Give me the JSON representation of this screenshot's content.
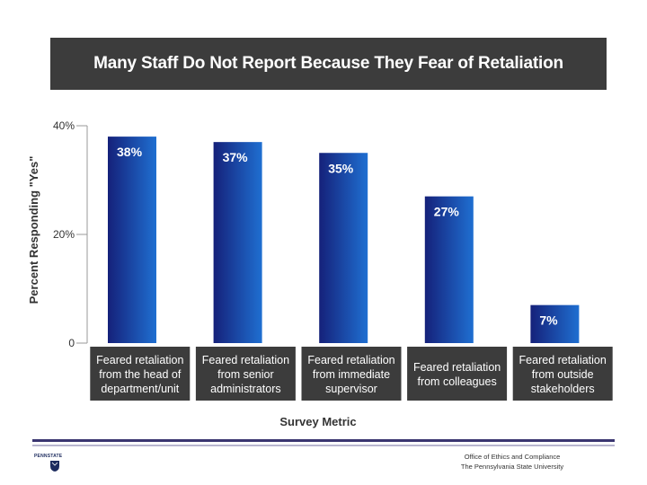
{
  "chart_data": {
    "type": "bar",
    "title": "Many Staff Do Not Report Because They Fear of Retaliation",
    "xlabel": "Survey Metric",
    "ylabel": "Percent Responding \"Yes\"",
    "ylim": [
      0,
      40
    ],
    "yticks": [
      "0",
      "20%",
      "40%"
    ],
    "categories": [
      [
        "Feared retaliation",
        "from the head of",
        "department/unit"
      ],
      [
        "Feared retaliation",
        "from senior",
        "administrators"
      ],
      [
        "Feared retaliation",
        "from immediate",
        "supervisor"
      ],
      [
        "Feared retaliation",
        "from colleagues"
      ],
      [
        "Feared retaliation",
        "from outside",
        "stakeholders"
      ]
    ],
    "values": [
      38,
      37,
      35,
      27,
      7
    ],
    "data_labels": [
      "38%",
      "37%",
      "35%",
      "27%",
      "7%"
    ],
    "colors": {
      "bar_light": "#1f6fd1",
      "bar_dark": "#15217a",
      "category_box": "#3c3c3c",
      "title_banner": "#3c3c3c"
    }
  },
  "footer": {
    "org_line1": "Office of Ethics and Compliance",
    "org_line2": "The Pennsylvania State University",
    "logo_text": "PENNSTATE"
  }
}
